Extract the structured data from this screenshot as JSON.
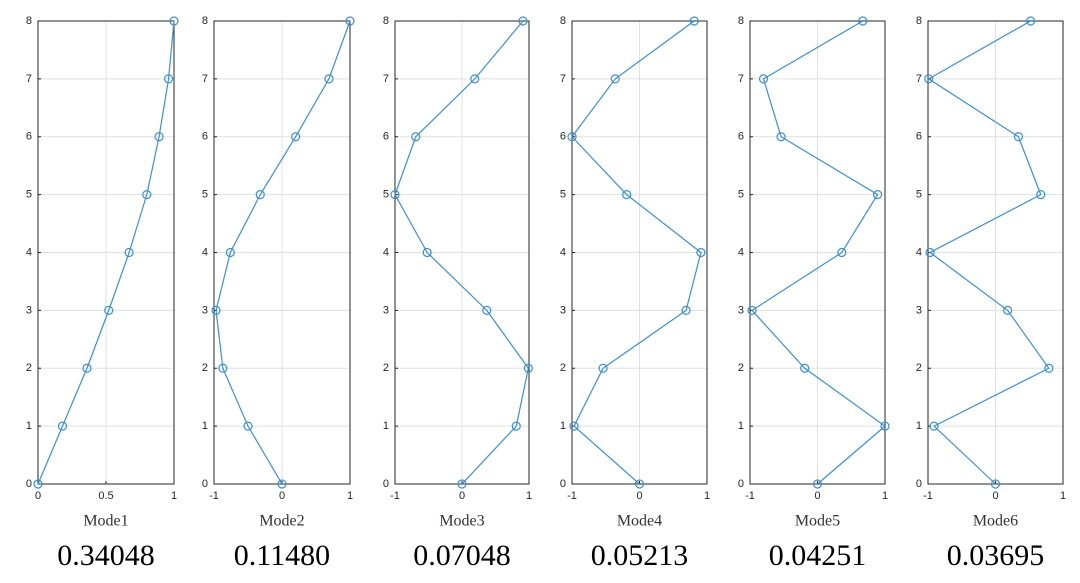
{
  "chart_data": [
    {
      "type": "line",
      "xlabel": "Mode1",
      "annotation": "0.34048",
      "color": "#3d8fd1",
      "grid": true,
      "x": [
        0,
        0.18,
        0.36,
        0.52,
        0.67,
        0.8,
        0.89,
        0.96,
        1
      ],
      "y": [
        0,
        1,
        2,
        3,
        4,
        5,
        6,
        7,
        8
      ],
      "xlim": [
        0,
        1
      ],
      "xticks": [
        0,
        0.5,
        1
      ],
      "ylim": [
        0,
        8
      ],
      "yticks": [
        0,
        1,
        2,
        3,
        4,
        5,
        6,
        7,
        8
      ]
    },
    {
      "type": "line",
      "xlabel": "Mode2",
      "annotation": "0.11480",
      "color": "#3d8fd1",
      "grid": true,
      "x": [
        0,
        -0.5,
        -0.87,
        -0.97,
        -0.76,
        -0.32,
        0.2,
        0.69,
        1
      ],
      "y": [
        0,
        1,
        2,
        3,
        4,
        5,
        6,
        7,
        8
      ],
      "xlim": [
        -1,
        1
      ],
      "xticks": [
        -1,
        0,
        1
      ],
      "ylim": [
        0,
        8
      ],
      "yticks": [
        0,
        1,
        2,
        3,
        4,
        5,
        6,
        7,
        8
      ]
    },
    {
      "type": "line",
      "xlabel": "Mode3",
      "annotation": "0.07048",
      "color": "#3d8fd1",
      "grid": true,
      "x": [
        0,
        0.81,
        0.99,
        0.37,
        -0.52,
        -1,
        -0.69,
        0.19,
        0.91
      ],
      "y": [
        0,
        1,
        2,
        3,
        4,
        5,
        6,
        7,
        8
      ],
      "xlim": [
        -1,
        1
      ],
      "xticks": [
        -1,
        0,
        1
      ],
      "ylim": [
        0,
        8
      ],
      "yticks": [
        0,
        1,
        2,
        3,
        4,
        5,
        6,
        7,
        8
      ]
    },
    {
      "type": "line",
      "xlabel": "Mode4",
      "annotation": "0.05213",
      "color": "#3d8fd1",
      "grid": true,
      "x": [
        0,
        -0.97,
        -0.54,
        0.69,
        0.91,
        -0.19,
        -1,
        -0.36,
        0.81
      ],
      "y": [
        0,
        1,
        2,
        3,
        4,
        5,
        6,
        7,
        8
      ],
      "xlim": [
        -1,
        1
      ],
      "xticks": [
        -1,
        0,
        1
      ],
      "ylim": [
        0,
        8
      ],
      "yticks": [
        0,
        1,
        2,
        3,
        4,
        5,
        6,
        7,
        8
      ]
    },
    {
      "type": "line",
      "xlabel": "Mode5",
      "annotation": "0.04251",
      "color": "#3d8fd1",
      "grid": true,
      "x": [
        0,
        1,
        -0.19,
        -0.97,
        0.36,
        0.89,
        -0.54,
        -0.8,
        0.67
      ],
      "y": [
        0,
        1,
        2,
        3,
        4,
        5,
        6,
        7,
        8
      ],
      "xlim": [
        -1,
        1
      ],
      "xticks": [
        -1,
        0,
        1
      ],
      "ylim": [
        0,
        8
      ],
      "yticks": [
        0,
        1,
        2,
        3,
        4,
        5,
        6,
        7,
        8
      ]
    },
    {
      "type": "line",
      "xlabel": "Mode6",
      "annotation": "0.03695",
      "color": "#3d8fd1",
      "grid": true,
      "x": [
        0,
        -0.91,
        0.79,
        0.18,
        -0.97,
        0.67,
        0.34,
        -0.99,
        0.52
      ],
      "y": [
        0,
        1,
        2,
        3,
        4,
        5,
        6,
        7,
        8
      ],
      "xlim": [
        -1,
        1
      ],
      "xticks": [
        -1,
        0,
        1
      ],
      "ylim": [
        0,
        8
      ],
      "yticks": [
        0,
        1,
        2,
        3,
        4,
        5,
        6,
        7,
        8
      ]
    }
  ]
}
